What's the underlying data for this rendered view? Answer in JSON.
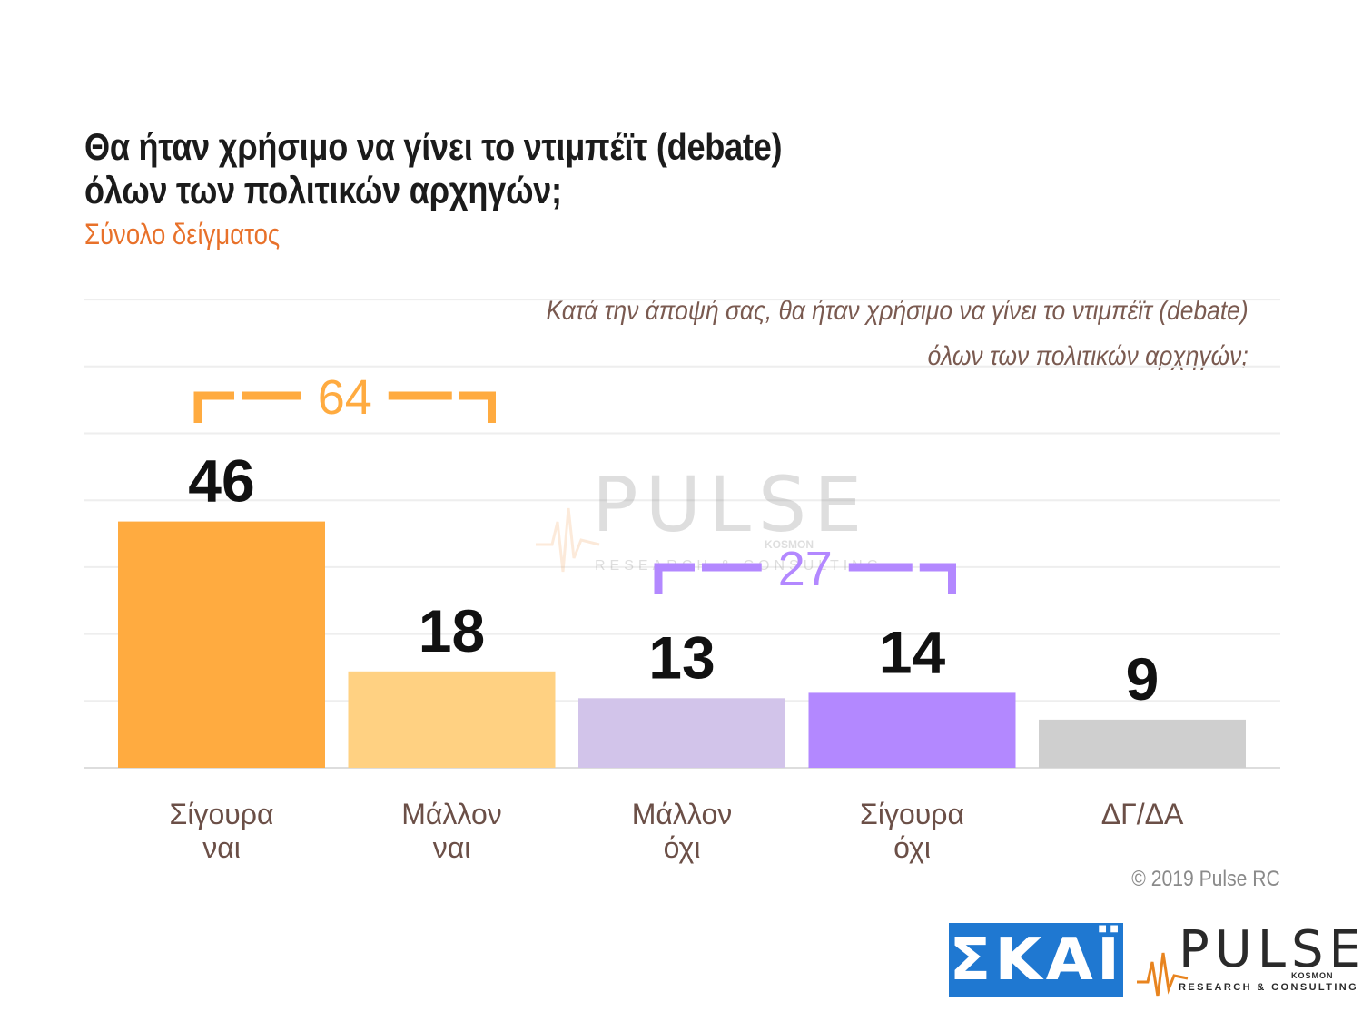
{
  "title_lines": [
    "Θα ήταν χρήσιμο να γίνει το ντιμπέϊτ (debate)",
    "όλων των πολιτικών αρχηγών;"
  ],
  "subtitle": "Σύνολο δείγματος",
  "question_lines": [
    "Κατά την άποψή σας, θα ήταν χρήσιμο να γίνει το ντιμπέϊτ (debate)",
    "όλων των πολιτικών αρχηγών;"
  ],
  "copyright": "© 2019 Pulse RC",
  "watermark": {
    "word": "PULSE",
    "sub": "RESEARCH & CONSULTING",
    "kosmon": "KOSMON"
  },
  "logos": {
    "skai": "ΣΚΑΪ",
    "pulse": {
      "word": "PULSE",
      "sub": "RESEARCH & CONSULTING",
      "kosmon": "KOSMON"
    }
  },
  "colors": {
    "yes_sure": "#ffab40",
    "yes_rather": "#ffd182",
    "no_rather": "#d2c4ea",
    "no_sure": "#b388ff",
    "dk": "#cfcfcf",
    "bracket_yes": "#ffab40",
    "bracket_no": "#b388ff",
    "subtitle": "#e8712a"
  },
  "chart_data": {
    "type": "bar",
    "categories": [
      [
        "Σίγουρα",
        "ναι"
      ],
      [
        "Μάλλον",
        "ναι"
      ],
      [
        "Μάλλον",
        "όχι"
      ],
      [
        "Σίγουρα",
        "όχι"
      ],
      [
        "ΔΓ/ΔΑ"
      ]
    ],
    "values": [
      46,
      18,
      13,
      14,
      9
    ],
    "value_labels": [
      "46",
      "18",
      "13",
      "14",
      "9"
    ],
    "bar_colors": [
      "#ffab40",
      "#ffd182",
      "#d2c4ea",
      "#b388ff",
      "#cfcfcf"
    ],
    "groups": [
      {
        "label": "64",
        "value": 64,
        "from": 0,
        "to": 1,
        "color": "#ffab40"
      },
      {
        "label": "27",
        "value": 27,
        "from": 2,
        "to": 3,
        "color": "#b388ff"
      }
    ],
    "ylim": [
      0,
      100
    ],
    "grid": true,
    "xlabel": "",
    "ylabel": ""
  }
}
